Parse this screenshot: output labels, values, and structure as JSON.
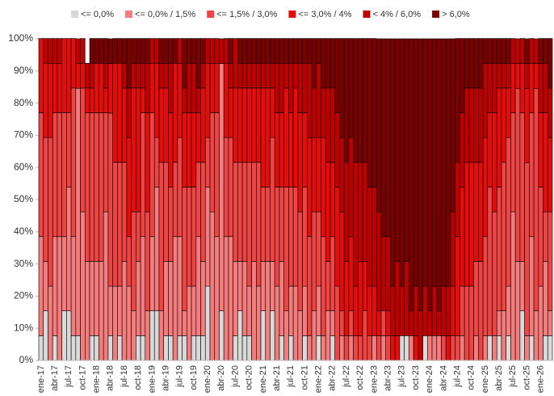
{
  "chart_data": {
    "type": "stacked_bar",
    "categories": [
      "ene-17",
      null,
      null,
      "abr-17",
      null,
      null,
      "jul-17",
      null,
      null,
      "oct-17",
      null,
      null,
      "ene-18",
      null,
      null,
      "abr-18",
      null,
      null,
      "jul-18",
      null,
      null,
      "oct-18",
      null,
      null,
      "ene-19",
      null,
      null,
      "abr-19",
      null,
      null,
      "jul-19",
      null,
      null,
      "oct-19",
      null,
      null,
      "ene-20",
      null,
      null,
      "abr-20",
      null,
      null,
      "jul-20",
      null,
      null,
      "oct-20",
      null,
      null,
      "ene-21",
      null,
      null,
      "abr-21",
      null,
      null,
      "jul-21",
      null,
      null,
      "oct-21",
      null,
      null,
      "ene-22",
      null,
      null,
      "abr-22",
      null,
      null,
      "jul-22",
      null,
      null,
      "oct-22",
      null,
      null,
      "ene-23",
      null,
      null,
      "abr-23",
      null,
      null,
      "jul-23",
      null,
      null,
      "oct-23",
      null,
      null,
      "ene-24",
      null,
      null,
      "abr-24",
      null,
      null,
      "jul-24",
      null,
      null,
      "oct-24",
      null,
      null,
      "ene-25",
      null,
      null,
      "abr-25",
      null,
      null,
      "jul-25",
      null,
      null,
      "oct-25",
      null,
      null,
      "ene-26",
      null,
      null
    ],
    "series": [
      {
        "name": "<= 0,0%",
        "color": "#d9d9d9",
        "values": [
          7.7,
          15.4,
          0,
          7.7,
          0,
          15.4,
          15.4,
          7.7,
          7.7,
          0,
          0,
          7.7,
          7.7,
          0,
          0,
          7.7,
          0,
          7.7,
          0,
          0,
          0,
          7.7,
          7.7,
          0,
          15.4,
          15.4,
          0,
          7.7,
          7.7,
          0,
          7.7,
          7.7,
          0,
          7.7,
          7.7,
          7.7,
          23.1,
          0,
          0,
          15.4,
          0,
          0,
          7.7,
          15.4,
          7.7,
          7.7,
          0,
          0,
          15.4,
          0,
          15.4,
          0,
          7.7,
          0,
          7.7,
          0,
          0,
          7.7,
          0,
          0,
          7.7,
          0,
          0,
          7.7,
          0,
          0,
          0,
          0,
          0,
          0,
          0,
          0,
          0,
          0,
          0,
          0,
          0,
          0,
          7.7,
          7.7,
          0,
          0,
          0,
          7.7,
          0,
          0,
          0,
          0,
          0,
          0,
          0,
          0,
          0,
          0,
          0,
          0,
          0,
          7.7,
          0,
          7.7,
          0,
          7.7,
          0,
          0,
          15.4,
          0,
          7.7,
          0,
          0,
          7.7,
          7.7
        ]
      },
      {
        "name": "<= 0,0% / 1,5%",
        "color": "#f47c7c",
        "values": [
          30.8,
          15.4,
          23.1,
          30.8,
          38.5,
          23.1,
          38.5,
          30.8,
          76.9,
          46.2,
          30.8,
          23.1,
          23.1,
          30.8,
          46.2,
          15.4,
          23.1,
          15.4,
          30.8,
          23.1,
          15.4,
          23.1,
          30.8,
          15.4,
          23.1,
          38.5,
          15.4,
          23.1,
          23.1,
          38.5,
          30.8,
          7.7,
          23.1,
          15.4,
          30.8,
          23.1,
          30.8,
          46.2,
          38.5,
          76.9,
          38.5,
          38.5,
          23.1,
          15.4,
          23.1,
          15.4,
          30.8,
          23.1,
          15.4,
          30.8,
          15.4,
          23.1,
          23.1,
          15.4,
          15.4,
          23.1,
          15.4,
          15.4,
          7.7,
          15.4,
          15.4,
          7.7,
          15.4,
          7.7,
          0,
          7.7,
          0,
          7.7,
          0,
          0,
          0,
          0,
          7.7,
          0,
          7.7,
          0,
          0,
          0,
          0,
          0,
          7.7,
          0,
          0,
          0,
          7.7,
          7.7,
          7.7,
          0,
          0,
          0,
          0,
          7.7,
          0,
          0,
          7.7,
          0,
          7.7,
          0,
          7.7,
          7.7,
          15.4,
          15.4,
          46.2,
          30.8,
          15.4,
          7.7,
          30.8,
          15.4,
          23.1,
          23.1,
          7.7
        ]
      },
      {
        "name": "<= 1,5% / 3,0%",
        "color": "#ee4444",
        "values": [
          38.5,
          38.5,
          46.2,
          38.5,
          38.5,
          38.5,
          23.1,
          46.2,
          0,
          38.5,
          46.2,
          46.2,
          46.2,
          46.2,
          30.8,
          53.8,
          38.5,
          38.5,
          30.8,
          15.4,
          30.8,
          15.4,
          38.5,
          30.8,
          38.5,
          15.4,
          46.2,
          30.8,
          23.1,
          23.1,
          30.8,
          38.5,
          30.8,
          30.8,
          23.1,
          30.8,
          15.4,
          30.8,
          38.5,
          0,
          30.8,
          30.8,
          30.8,
          30.8,
          30.8,
          38.5,
          30.8,
          38.5,
          23.1,
          23.1,
          38.5,
          30.8,
          23.1,
          38.5,
          30.8,
          30.8,
          30.8,
          30.8,
          30.8,
          30.8,
          23.1,
          30.8,
          15.4,
          23.1,
          23.1,
          7.7,
          7.7,
          7.7,
          7.7,
          7.7,
          15.4,
          7.7,
          0,
          7.7,
          7.7,
          7.7,
          0,
          0,
          0,
          0,
          0,
          0,
          0,
          0,
          0,
          0,
          0,
          7.7,
          0,
          7.7,
          7.7,
          15.4,
          23.1,
          23.1,
          23.1,
          30.8,
          30.8,
          46.2,
          38.5,
          38.5,
          46.2,
          46.2,
          30.8,
          53.8,
          46.2,
          53.8,
          38.5,
          69.2,
          30.8,
          15.4,
          30.8
        ]
      },
      {
        "name": "<= 3,0% / 4%",
        "color": "#e60c0c",
        "values": [
          23.1,
          23.1,
          23.1,
          15.4,
          15.4,
          23.1,
          23.1,
          15.4,
          7.7,
          7.7,
          7.7,
          7.7,
          15.4,
          15.4,
          7.7,
          15.4,
          30.8,
          30.8,
          23.1,
          30.8,
          38.5,
          38.5,
          7.7,
          30.8,
          15.4,
          23.1,
          23.1,
          23.1,
          23.1,
          30.8,
          23.1,
          23.1,
          23.1,
          23.1,
          15.4,
          23.1,
          23.1,
          15.4,
          15.4,
          0,
          23.1,
          15.4,
          23.1,
          23.1,
          23.1,
          23.1,
          23.1,
          23.1,
          30.8,
          30.8,
          15.4,
          23.1,
          23.1,
          30.8,
          23.1,
          30.8,
          30.8,
          23.1,
          30.8,
          23.1,
          23.1,
          30.8,
          30.8,
          23.1,
          30.8,
          30.8,
          23.1,
          23.1,
          15.4,
          23.1,
          15.4,
          15.4,
          15.4,
          7.7,
          0,
          7.7,
          7.7,
          7.7,
          0,
          0,
          0,
          7.7,
          0,
          0,
          0,
          0,
          0,
          0,
          7.7,
          15.4,
          30.8,
          30.8,
          38.5,
          38.5,
          30.8,
          30.8,
          30.8,
          23.1,
          30.8,
          30.8,
          23.1,
          15.4,
          15.4,
          7.7,
          15.4,
          23.1,
          15.4,
          7.7,
          23.1,
          30.8,
          23.1
        ]
      },
      {
        "name": "< 4% / 6,0%",
        "color": "#c00000",
        "values": [
          0,
          7.7,
          7.7,
          7.7,
          7.7,
          0,
          0,
          0,
          7.7,
          7.7,
          7.7,
          7.7,
          0,
          0,
          7.7,
          0,
          0,
          0,
          7.7,
          15.4,
          7.7,
          7.7,
          7.7,
          15.4,
          7.7,
          7.7,
          7.7,
          7.7,
          15.4,
          0,
          7.7,
          7.7,
          15.4,
          15.4,
          7.7,
          7.7,
          7.7,
          7.7,
          7.7,
          7.7,
          7.7,
          7.7,
          15.4,
          7.7,
          7.7,
          7.7,
          7.7,
          7.7,
          7.7,
          7.7,
          7.7,
          15.4,
          15.4,
          7.7,
          15.4,
          7.7,
          15.4,
          15.4,
          23.1,
          15.4,
          23.1,
          15.4,
          23.1,
          23.1,
          23.1,
          23.1,
          30.8,
          30.8,
          38.5,
          30.8,
          30.8,
          30.8,
          30.8,
          30.8,
          23.1,
          23.1,
          15.4,
          23.1,
          15.4,
          23.1,
          7.7,
          15.4,
          15.4,
          15.4,
          7.7,
          15.4,
          7.7,
          15.4,
          15.4,
          23.1,
          23.1,
          23.1,
          23.1,
          23.1,
          23.1,
          23.1,
          23.1,
          15.4,
          15.4,
          7.7,
          7.7,
          7.7,
          7.7,
          7.7,
          7.7,
          7.7,
          7.7,
          7.7,
          15.4,
          15.4,
          15.4
        ]
      },
      {
        "name": "> 6,0%",
        "color": "#7a0000",
        "values": [
          0,
          0,
          0,
          0,
          0,
          0,
          0,
          0,
          0,
          0,
          0,
          7.7,
          7.7,
          7.7,
          7.7,
          7.7,
          7.7,
          7.7,
          7.7,
          15.4,
          7.7,
          7.7,
          7.7,
          7.7,
          0,
          0,
          7.7,
          7.7,
          7.7,
          7.7,
          0,
          15.4,
          7.7,
          7.7,
          15.4,
          7.7,
          0,
          0,
          0,
          0,
          0,
          7.7,
          0,
          7.7,
          7.7,
          7.7,
          7.7,
          7.7,
          7.7,
          7.7,
          7.7,
          7.7,
          7.7,
          7.7,
          7.7,
          7.7,
          7.7,
          7.7,
          7.7,
          15.4,
          7.7,
          15.4,
          15.4,
          15.4,
          23.1,
          30.8,
          38.5,
          30.8,
          38.5,
          38.5,
          38.5,
          46.2,
          46.2,
          53.8,
          61.5,
          61.5,
          76.9,
          69.2,
          76.9,
          69.2,
          84.6,
          76.9,
          84.6,
          76.9,
          84.6,
          76.9,
          84.6,
          76.9,
          76.9,
          53.8,
          38.5,
          23.1,
          15.4,
          15.4,
          15.4,
          15.4,
          7.7,
          7.7,
          7.7,
          7.7,
          7.7,
          7.7,
          0,
          0,
          0,
          7.7,
          0,
          0,
          7.7,
          7.7,
          15.4
        ]
      }
    ],
    "ylim": [
      0,
      100
    ],
    "yticks": [
      {
        "value": 0,
        "label": "0%"
      },
      {
        "value": 10,
        "label": "10%"
      },
      {
        "value": 20,
        "label": "20%"
      },
      {
        "value": 30,
        "label": "30%"
      },
      {
        "value": 40,
        "label": "40%"
      },
      {
        "value": 50,
        "label": "50%"
      },
      {
        "value": 60,
        "label": "60%"
      },
      {
        "value": 70,
        "label": "70%"
      },
      {
        "value": 80,
        "label": "80%"
      },
      {
        "value": 90,
        "label": "90%"
      },
      {
        "value": 100,
        "label": "100%"
      }
    ],
    "legend": "top"
  }
}
